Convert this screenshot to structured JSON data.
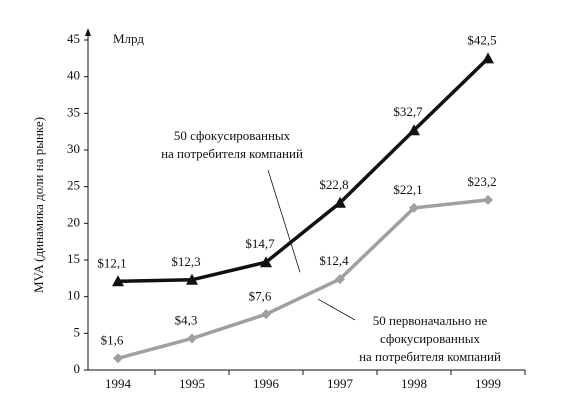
{
  "chart_data": {
    "type": "line",
    "y_label": "MVA (динамика доли на рынке)",
    "unit_label": "Млрд",
    "categories": [
      "1994",
      "1995",
      "1996",
      "1997",
      "1998",
      "1999"
    ],
    "series": [
      {
        "name": [
          "50 сфокусированных",
          "на потребителя компаний"
        ],
        "color": "#111111",
        "marker": "triangle",
        "values": [
          12.1,
          12.3,
          14.7,
          22.8,
          32.7,
          42.5
        ],
        "value_labels": [
          "$12,1",
          "$12,3",
          "$14,7",
          "$22,8",
          "$32,7",
          "$42,5"
        ]
      },
      {
        "name": [
          "50 первоначально не",
          "сфокусированных",
          "на потребителя компаний"
        ],
        "color": "#a0a0a0",
        "marker": "diamond",
        "values": [
          1.6,
          4.3,
          7.6,
          12.4,
          22.1,
          23.2
        ],
        "value_labels": [
          "$1,6",
          "$4,3",
          "$7,6",
          "$12,4",
          "$22,1",
          "$23,2"
        ]
      }
    ],
    "ylim": [
      0,
      45
    ],
    "yticks": [
      0,
      5,
      10,
      15,
      20,
      25,
      30,
      35,
      40,
      45
    ]
  }
}
